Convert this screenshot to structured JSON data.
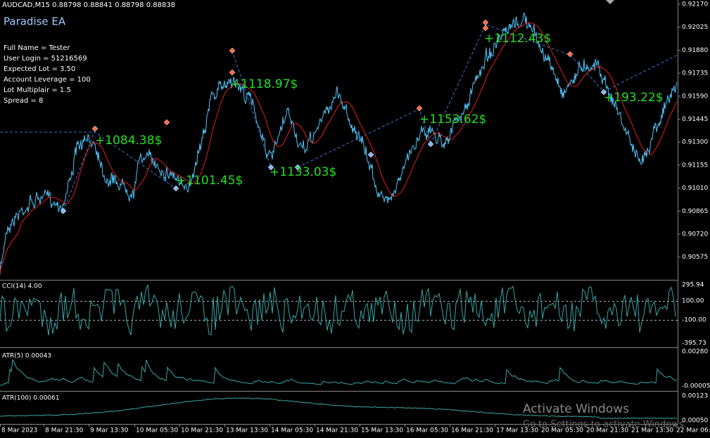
{
  "header": {
    "symbol": "AUDCAD,M15  0.88798 0.88841 0.88798 0.88838",
    "ea_name": "Paradise EA"
  },
  "info": [
    "Full Name =  Tester",
    "User Login =  51216569",
    "Expected Lot =  3.50",
    "Account Leverage =  100",
    "Lot Multiplair =  1.5",
    "Spread =  8"
  ],
  "trade_labels": [
    "+1084.38$",
    "+1101.45$",
    "+1118.97$",
    "+1133.03$",
    "+1153.62$",
    "+1112.43$",
    "+193.22$"
  ],
  "price_axis": [
    "0.92170",
    "0.92025",
    "0.91880",
    "0.91735",
    "0.91590",
    "0.91445",
    "0.91300",
    "0.91155",
    "0.91010",
    "0.90865",
    "0.90720",
    "0.90575"
  ],
  "indicators": [
    {
      "title": "CCI(14) 4.00",
      "axis": [
        "295.94",
        "100.00",
        "-100.00",
        "-395.73"
      ]
    },
    {
      "title": "ATR(5) 0.00043",
      "axis": [
        "0.00280",
        "-0.00005"
      ]
    },
    {
      "title": "ATR(100) 0.00061",
      "axis": [
        "0.00123",
        "0.00050"
      ]
    }
  ],
  "time_axis": [
    "8 Mar 2023",
    "8 Mar 21:30",
    "9 Mar 13:30",
    "10 Mar 05:30",
    "10 Mar 21:30",
    "13 Mar 13:30",
    "14 Mar 05:30",
    "14 Mar 21:30",
    "15 Mar 13:30",
    "16 Mar 05:30",
    "16 Mar 21:30",
    "17 Mar 13:30",
    "20 Mar 05:30",
    "20 Mar 21:30",
    "21 Mar 13:30",
    "22 Mar 06:15"
  ],
  "watermark": {
    "title": "Activate Windows",
    "subtitle": "Go to Settings to activate Windows."
  }
}
